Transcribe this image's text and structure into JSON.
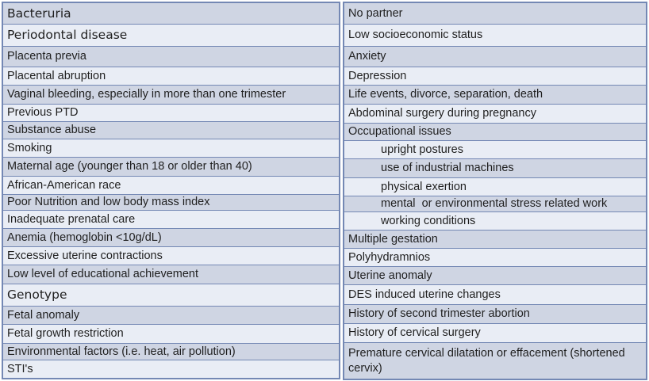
{
  "document": {
    "description": "Two-column risk factor table",
    "columns": 2
  },
  "colors": {
    "border": "#7488b4",
    "row_dark": "#cfd5e3",
    "row_light": "#e9edf5",
    "text": "#1f1f1f",
    "background": "#ffffff"
  },
  "table": {
    "left_rows": [
      {
        "label": "Bacteruria",
        "size": "large"
      },
      {
        "label": "Periodontal disease",
        "size": "large"
      },
      {
        "label": "Placenta previa"
      },
      {
        "label": "Placental abruption"
      },
      {
        "label": "Vaginal bleeding, especially in more than one trimester"
      },
      {
        "label": "Previous PTD"
      },
      {
        "label": "Substance abuse"
      },
      {
        "label": "Smoking"
      },
      {
        "label": "Maternal age (younger than 18 or older than 40)"
      },
      {
        "label": "African-American race"
      },
      {
        "label": "Poor Nutrition and low body mass index"
      },
      {
        "label": "Inadequate prenatal care"
      },
      {
        "label": "Anemia (hemoglobin <10g/dL)"
      },
      {
        "label": "Excessive uterine contractions"
      },
      {
        "label": "Low level of educational achievement"
      },
      {
        "label": "Genotype",
        "size": "large"
      },
      {
        "label": "Fetal anomaly"
      },
      {
        "label": "Fetal growth restriction"
      },
      {
        "label": "Environmental factors (i.e. heat, air pollution)"
      },
      {
        "label": "STI's"
      }
    ],
    "right_rows": [
      {
        "label": "No partner"
      },
      {
        "label": "Low socioeconomic status"
      },
      {
        "label": "Anxiety"
      },
      {
        "label": "Depression"
      },
      {
        "label": "Life events, divorce, separation, death"
      },
      {
        "label": "Abdominal surgery during pregnancy"
      },
      {
        "label": "Occupational issues"
      },
      {
        "label": "upright postures",
        "indent": true
      },
      {
        "label": "use of industrial machines",
        "indent": true
      },
      {
        "label": "physical exertion",
        "indent": true
      },
      {
        "label": "mental  or environmental stress related work",
        "indent": true
      },
      {
        "label": "working conditions",
        "indent": true
      },
      {
        "label": "Multiple gestation"
      },
      {
        "label": "Polyhydramnios"
      },
      {
        "label": "Uterine anomaly"
      },
      {
        "label": "DES induced uterine changes"
      },
      {
        "label": "History of second trimester abortion"
      },
      {
        "label": "History of cervical surgery"
      },
      {
        "label": "Premature cervical dilatation or effacement (shortened cervix)"
      }
    ]
  }
}
